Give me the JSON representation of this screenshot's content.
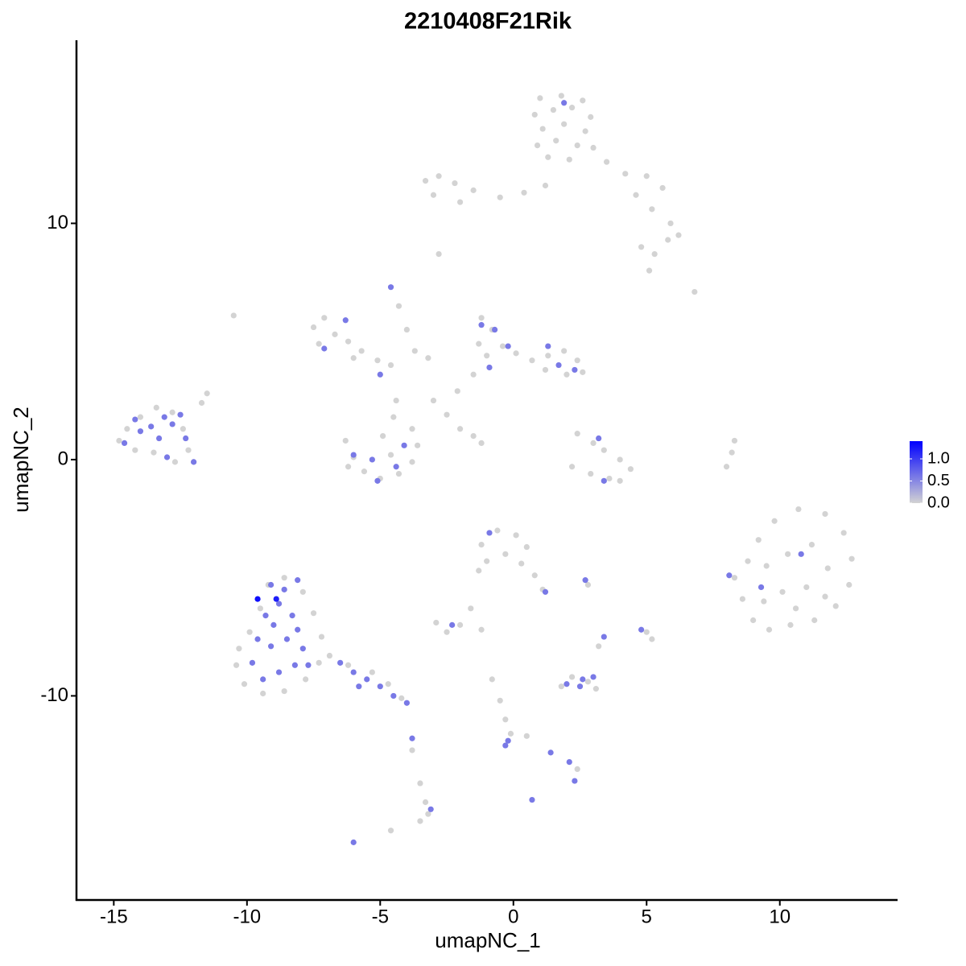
{
  "chart_data": {
    "type": "scatter",
    "title": "2210408F21Rik",
    "x_label": "umapNC_1",
    "y_label": "umapNC_2",
    "xlim": [
      -16.4,
      14.42
    ],
    "ylim": [
      -18.64,
      17.75
    ],
    "xticks": [
      -15,
      -10,
      -5,
      0,
      5,
      10
    ],
    "yticks": [
      -10,
      0,
      10
    ],
    "color_scale": [
      "#d3d3d3",
      "#0000ff"
    ],
    "clim": [
      0,
      1.4
    ],
    "cticks": [
      {
        "value": 0,
        "label": "0.0"
      },
      {
        "value": 0.5,
        "label": "0.5"
      },
      {
        "value": 1,
        "label": "1.0"
      }
    ],
    "x": [
      1.0,
      1.8,
      2.6,
      0.8,
      1.5,
      2.2,
      2.9,
      1.1,
      1.9,
      2.7,
      0.9,
      1.6,
      2.4,
      3.0,
      1.3,
      2.1,
      1.9,
      3.5,
      4.2,
      5.0,
      5.6,
      4.6,
      5.2,
      5.9,
      6.2,
      4.8,
      5.3,
      5.8,
      5.1,
      -3.3,
      -2.8,
      -2.2,
      -1.5,
      -0.5,
      0.4,
      1.2,
      -3.0,
      -2.0,
      -2.8,
      6.8,
      -10.5,
      -7.5,
      -7.1,
      -6.7,
      -6.2,
      -5.7,
      -5.1,
      -4.6,
      -7.3,
      -6.0,
      -5.0,
      -7.1,
      -6.3,
      -4.6,
      -4.3,
      -4.0,
      -3.7,
      -4.4,
      -3.2,
      -6.3,
      -6.0,
      -5.6,
      -5.0,
      -4.3,
      -3.8,
      -3.6,
      -3.8,
      -6.2,
      -5.3,
      -4.6,
      -4.1,
      -5.1,
      -6.0,
      -4.9,
      -4.5,
      -4.4,
      -1.2,
      -0.8,
      -1.3,
      -1.0,
      -0.4,
      0.1,
      0.7,
      1.3,
      1.9,
      2.4,
      2.6,
      2.0,
      1.2,
      -1.5,
      -0.9,
      -1.2,
      -0.7,
      1.3,
      1.7,
      2.3,
      -0.2,
      -2.1,
      -2.5,
      -3.0,
      -2.0,
      -1.5,
      -1.2,
      2.4,
      3.0,
      3.4,
      4.0,
      4.4,
      3.6,
      2.9,
      2.2,
      4.0,
      3.4,
      3.2,
      8.0,
      8.2,
      8.3,
      -14.8,
      -14.5,
      -14.0,
      -13.4,
      -12.8,
      -12.4,
      -12.2,
      -12.0,
      -12.7,
      -13.5,
      -14.2,
      -11.7,
      -11.5,
      -14.6,
      -14.0,
      -13.6,
      -13.1,
      -12.8,
      -13.3,
      -12.5,
      -14.2,
      -12.3,
      -13.0,
      -12.0,
      8.3,
      8.6,
      9.0,
      9.6,
      10.4,
      11.3,
      12.1,
      12.6,
      12.7,
      12.4,
      11.7,
      10.7,
      9.8,
      9.2,
      8.8,
      9.5,
      10.3,
      11.2,
      11.8,
      11.0,
      10.1,
      9.4,
      10.6,
      11.7,
      10.8,
      9.3,
      8.1,
      -10.4,
      -10.1,
      -9.4,
      -8.6,
      -7.8,
      -7.3,
      -7.2,
      -7.5,
      -7.9,
      -8.6,
      -9.2,
      -9.5,
      -9.9,
      -10.3,
      -6.9,
      -9.8,
      -9.4,
      -8.8,
      -8.2,
      -7.9,
      -8.5,
      -9.1,
      -9.6,
      -9.0,
      -8.3,
      -8.8,
      -9.3,
      -8.1,
      -8.6,
      -9.1,
      -7.7,
      -9.6,
      -8.9,
      -8.1,
      -6.2,
      -5.3,
      -4.7,
      -4.2,
      -6.5,
      -6.0,
      -5.5,
      -5.0,
      -4.5,
      -4.0,
      -5.8,
      -1.2,
      -0.6,
      0.1,
      0.5,
      -0.3,
      -1.0,
      0.3,
      0.8,
      1.1,
      -1.3,
      -0.9,
      1.2,
      -2.9,
      -2.5,
      -2.0,
      -1.6,
      -1.2,
      -2.3,
      2.8,
      2.7,
      3.2,
      3.4,
      5.0,
      5.2,
      4.8,
      1.8,
      2.2,
      2.8,
      3.1,
      2.0,
      2.5,
      3.0,
      2.6,
      -0.8,
      -0.5,
      -0.3,
      -0.1,
      0.5,
      2.4,
      -3.8,
      -3.5,
      -3.3,
      -3.2,
      -3.5,
      -4.6,
      -0.3,
      -0.2,
      1.4,
      2.1,
      2.3,
      0.7,
      -3.8,
      -3.1,
      -6.0
    ],
    "values": [
      15.3,
      15.4,
      15.2,
      14.6,
      14.8,
      14.9,
      14.5,
      14.0,
      14.2,
      13.9,
      13.3,
      13.5,
      13.3,
      13.2,
      12.8,
      12.7,
      15.1,
      12.6,
      12.1,
      12.0,
      11.5,
      11.2,
      10.6,
      10.0,
      9.5,
      9.0,
      8.7,
      9.3,
      8.0,
      11.8,
      12.0,
      11.7,
      11.4,
      11.1,
      11.3,
      11.6,
      11.2,
      10.9,
      8.7,
      7.1,
      6.1,
      5.6,
      6.0,
      5.3,
      5.0,
      4.6,
      4.2,
      4.0,
      4.9,
      4.3,
      3.6,
      4.7,
      5.9,
      7.3,
      6.5,
      5.5,
      4.6,
      2.5,
      4.3,
      0.8,
      0.1,
      -0.5,
      -0.8,
      -0.6,
      -0.1,
      0.6,
      1.3,
      -0.3,
      0.0,
      0.2,
      0.6,
      -0.9,
      0.2,
      1.0,
      1.8,
      -0.3,
      6.0,
      5.5,
      4.9,
      4.4,
      4.8,
      4.5,
      4.2,
      4.4,
      4.6,
      4.2,
      3.7,
      3.6,
      3.8,
      3.6,
      3.9,
      5.7,
      5.5,
      4.8,
      4.0,
      3.8,
      4.8,
      2.9,
      1.9,
      2.5,
      1.3,
      1.0,
      0.7,
      1.1,
      0.7,
      0.4,
      0.0,
      -0.4,
      -0.8,
      -0.6,
      -0.3,
      -0.9,
      -0.9,
      0.9,
      -0.3,
      0.3,
      0.8,
      0.8,
      1.3,
      1.8,
      2.2,
      2.0,
      1.3,
      0.4,
      -0.1,
      -0.1,
      0.3,
      0.4,
      2.4,
      2.8,
      0.7,
      1.2,
      1.4,
      1.8,
      1.5,
      0.9,
      1.9,
      1.7,
      0.9,
      0.1,
      -0.1,
      -5.0,
      -5.9,
      -6.8,
      -7.2,
      -7.0,
      -6.8,
      -6.2,
      -5.3,
      -4.2,
      -3.1,
      -2.3,
      -2.1,
      -2.6,
      -3.4,
      -4.3,
      -4.5,
      -4.0,
      -3.6,
      -4.6,
      -5.4,
      -5.6,
      -6.0,
      -6.3,
      -5.8,
      -4.0,
      -5.4,
      -4.9,
      -8.7,
      -9.5,
      -9.9,
      -9.8,
      -9.3,
      -8.6,
      -7.5,
      -6.5,
      -5.6,
      -5.0,
      -5.3,
      -6.3,
      -7.3,
      -8.0,
      -8.3,
      -8.6,
      -9.3,
      -9.0,
      -8.7,
      -8.0,
      -7.6,
      -7.9,
      -7.6,
      -7.0,
      -6.6,
      -6.1,
      -6.6,
      -7.2,
      -5.5,
      -5.3,
      -8.7,
      -5.9,
      -5.9,
      -5.1,
      -8.7,
      -9.0,
      -9.5,
      -10.1,
      -8.6,
      -9.0,
      -9.3,
      -9.6,
      -10.0,
      -10.3,
      -9.6,
      -3.6,
      -3.0,
      -3.2,
      -3.7,
      -4.0,
      -4.3,
      -4.4,
      -4.9,
      -5.5,
      -4.7,
      -3.1,
      -5.6,
      -6.9,
      -7.3,
      -7.0,
      -6.3,
      -7.2,
      -7.0,
      -5.3,
      -5.1,
      -7.9,
      -7.5,
      -7.3,
      -7.6,
      -7.2,
      -9.6,
      -9.2,
      -9.4,
      -9.7,
      -9.5,
      -9.6,
      -9.2,
      -9.3,
      -9.3,
      -10.2,
      -11.0,
      -11.6,
      -11.7,
      -13.1,
      -12.3,
      -13.7,
      -14.5,
      -15.0,
      -15.3,
      -15.7,
      -12.1,
      -11.9,
      -12.4,
      -12.8,
      -13.6,
      -14.4,
      -11.8,
      -14.8,
      -16.2
    ],
    "expression": [
      0,
      0,
      0,
      0,
      0,
      0,
      0,
      0,
      0,
      0,
      0,
      0,
      0,
      0,
      0,
      0,
      0.6,
      0,
      0,
      0,
      0,
      0,
      0,
      0,
      0,
      0,
      0,
      0,
      0,
      0,
      0,
      0,
      0,
      0,
      0,
      0,
      0,
      0,
      0,
      0,
      0,
      0,
      0,
      0,
      0,
      0,
      0,
      0,
      0,
      0,
      0.6,
      0.6,
      0.6,
      0.6,
      0,
      0,
      0,
      0,
      0,
      0,
      0,
      0,
      0,
      0,
      0,
      0,
      0,
      0,
      0.6,
      0,
      0.6,
      0.6,
      0.6,
      0,
      0,
      0.6,
      0,
      0,
      0,
      0,
      0,
      0,
      0,
      0,
      0,
      0,
      0,
      0,
      0,
      0,
      0.6,
      0.6,
      0.6,
      0.6,
      0.6,
      0.6,
      0.6,
      0,
      0,
      0,
      0,
      0,
      0,
      0,
      0,
      0,
      0,
      0,
      0,
      0,
      0,
      0,
      0.6,
      0.6,
      0,
      0,
      0,
      0,
      0,
      0,
      0,
      0,
      0,
      0,
      0,
      0,
      0,
      0,
      0,
      0,
      0.6,
      0.6,
      0.6,
      0.6,
      0.6,
      0.6,
      0.6,
      0.6,
      0.6,
      0.6,
      0.6,
      0,
      0,
      0,
      0,
      0,
      0,
      0,
      0,
      0,
      0,
      0,
      0,
      0,
      0,
      0,
      0,
      0,
      0,
      0,
      0,
      0,
      0,
      0,
      0,
      0.6,
      0.6,
      0.6,
      0,
      0,
      0,
      0,
      0,
      0,
      0,
      0,
      0,
      0,
      0,
      0,
      0,
      0,
      0,
      0.6,
      0.6,
      0.6,
      0.6,
      0.6,
      0.6,
      0.6,
      0.6,
      0.6,
      0.6,
      0.6,
      0.6,
      0.6,
      0.6,
      0.6,
      0.6,
      1.3,
      1.2,
      0.6,
      0,
      0,
      0,
      0,
      0.6,
      0.6,
      0.6,
      0.6,
      0.6,
      0.6,
      0.6,
      0,
      0,
      0,
      0,
      0,
      0,
      0,
      0,
      0,
      0,
      0.6,
      0.6,
      0,
      0,
      0,
      0,
      0,
      0.6,
      0,
      0.6,
      0,
      0.6,
      0,
      0,
      0.6,
      0,
      0,
      0,
      0,
      0.6,
      0.6,
      0.6,
      0.6,
      0,
      0,
      0,
      0,
      0,
      0,
      0,
      0,
      0,
      0,
      0,
      0,
      0.6,
      0.6,
      0.6,
      0.6,
      0.6,
      0.6,
      0.6,
      0.6,
      0.6
    ]
  }
}
